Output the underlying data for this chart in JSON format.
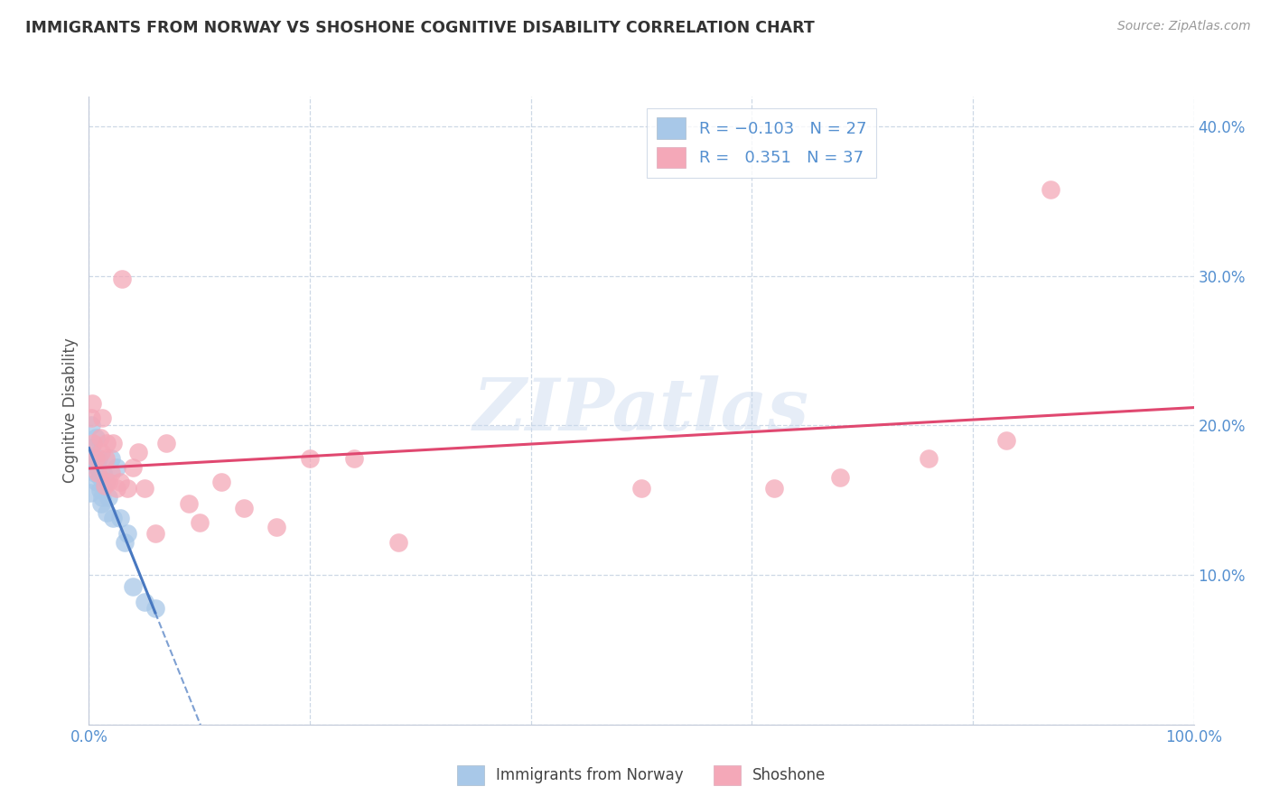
{
  "title": "IMMIGRANTS FROM NORWAY VS SHOSHONE COGNITIVE DISABILITY CORRELATION CHART",
  "source": "Source: ZipAtlas.com",
  "ylabel": "Cognitive Disability",
  "xlim": [
    0,
    1.0
  ],
  "ylim": [
    0,
    0.42
  ],
  "norway_R": -0.103,
  "norway_N": 27,
  "shoshone_R": 0.351,
  "shoshone_N": 37,
  "norway_color": "#a8c8e8",
  "shoshone_color": "#f4a8b8",
  "norway_line_color": "#4878c0",
  "shoshone_line_color": "#e04870",
  "legend_norway_label": "Immigrants from Norway",
  "legend_shoshone_label": "Shoshone",
  "norway_points_x": [
    0.001,
    0.002,
    0.002,
    0.003,
    0.004,
    0.005,
    0.006,
    0.007,
    0.008,
    0.009,
    0.01,
    0.01,
    0.011,
    0.012,
    0.013,
    0.015,
    0.016,
    0.018,
    0.02,
    0.022,
    0.025,
    0.028,
    0.032,
    0.035,
    0.04,
    0.05,
    0.06
  ],
  "norway_points_y": [
    0.155,
    0.2,
    0.185,
    0.18,
    0.175,
    0.168,
    0.192,
    0.162,
    0.172,
    0.178,
    0.157,
    0.165,
    0.148,
    0.152,
    0.168,
    0.162,
    0.142,
    0.152,
    0.178,
    0.138,
    0.172,
    0.138,
    0.122,
    0.128,
    0.092,
    0.082,
    0.078
  ],
  "shoshone_points_x": [
    0.002,
    0.003,
    0.004,
    0.006,
    0.008,
    0.01,
    0.011,
    0.012,
    0.014,
    0.015,
    0.016,
    0.018,
    0.02,
    0.022,
    0.025,
    0.028,
    0.03,
    0.035,
    0.04,
    0.045,
    0.05,
    0.06,
    0.07,
    0.09,
    0.1,
    0.12,
    0.14,
    0.17,
    0.2,
    0.24,
    0.28,
    0.5,
    0.62,
    0.68,
    0.76,
    0.83,
    0.87
  ],
  "shoshone_points_y": [
    0.205,
    0.215,
    0.188,
    0.178,
    0.168,
    0.192,
    0.182,
    0.205,
    0.16,
    0.178,
    0.188,
    0.162,
    0.168,
    0.188,
    0.158,
    0.162,
    0.298,
    0.158,
    0.172,
    0.182,
    0.158,
    0.128,
    0.188,
    0.148,
    0.135,
    0.162,
    0.145,
    0.132,
    0.178,
    0.178,
    0.122,
    0.158,
    0.158,
    0.165,
    0.178,
    0.19,
    0.358
  ],
  "watermark": "ZIPatlas"
}
